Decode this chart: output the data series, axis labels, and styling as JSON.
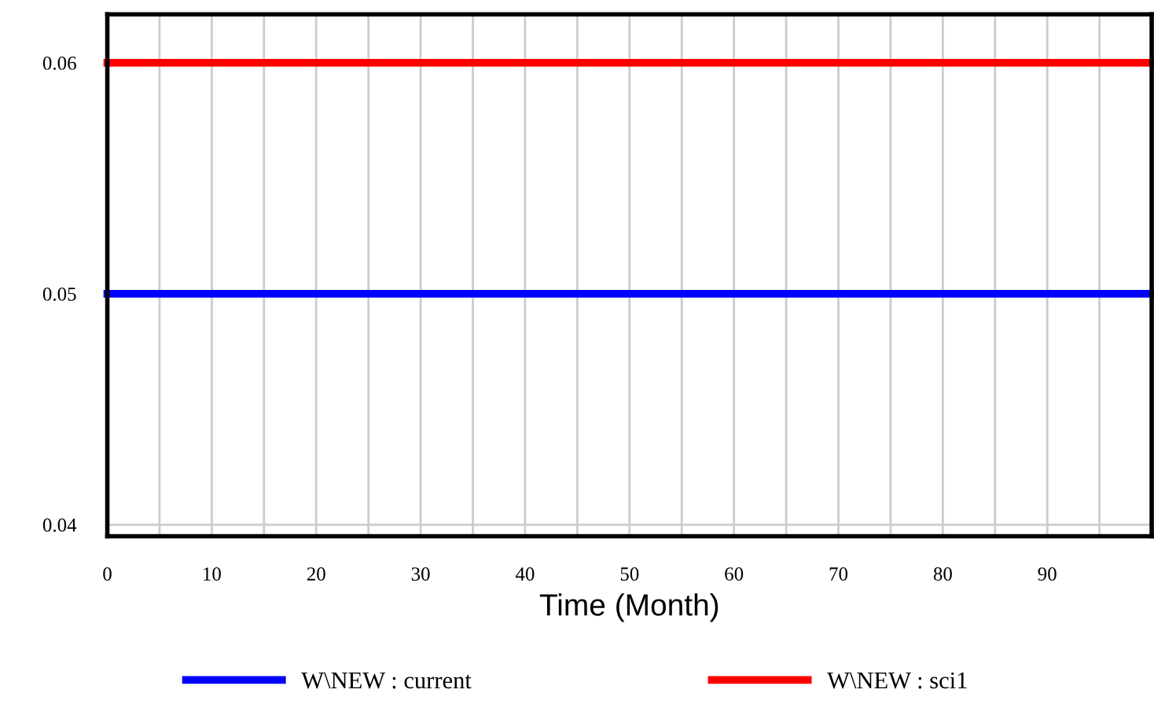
{
  "chart_data": {
    "type": "line",
    "xlabel": "Time (Month)",
    "x": [
      0,
      100
    ],
    "series": [
      {
        "name": "W\\NEW : current",
        "color": "#0000ff",
        "values": [
          0.05,
          0.05
        ]
      },
      {
        "name": "W\\NEW : sci1",
        "color": "#ff0000",
        "values": [
          0.06,
          0.06
        ]
      }
    ],
    "xlim": [
      0,
      100
    ],
    "xticks": [
      0,
      {
        "value": 5,
        "label": null
      },
      10,
      {
        "value": 15,
        "label": null
      },
      20,
      {
        "value": 25,
        "label": null
      },
      30,
      {
        "value": 35,
        "label": null
      },
      40,
      {
        "value": 45,
        "label": null
      },
      50,
      {
        "value": 55,
        "label": null
      },
      60,
      {
        "value": 65,
        "label": null
      },
      70,
      {
        "value": 75,
        "label": null
      },
      80,
      {
        "value": 85,
        "label": null
      },
      90,
      {
        "value": 95,
        "label": null
      },
      {
        "value": 100,
        "label": null
      }
    ],
    "ylim": [
      0.0395,
      0.0621
    ],
    "yticks": [
      0.04,
      0.05,
      0.06
    ],
    "grid": true,
    "legend": "bottom",
    "line_style": "solid"
  }
}
